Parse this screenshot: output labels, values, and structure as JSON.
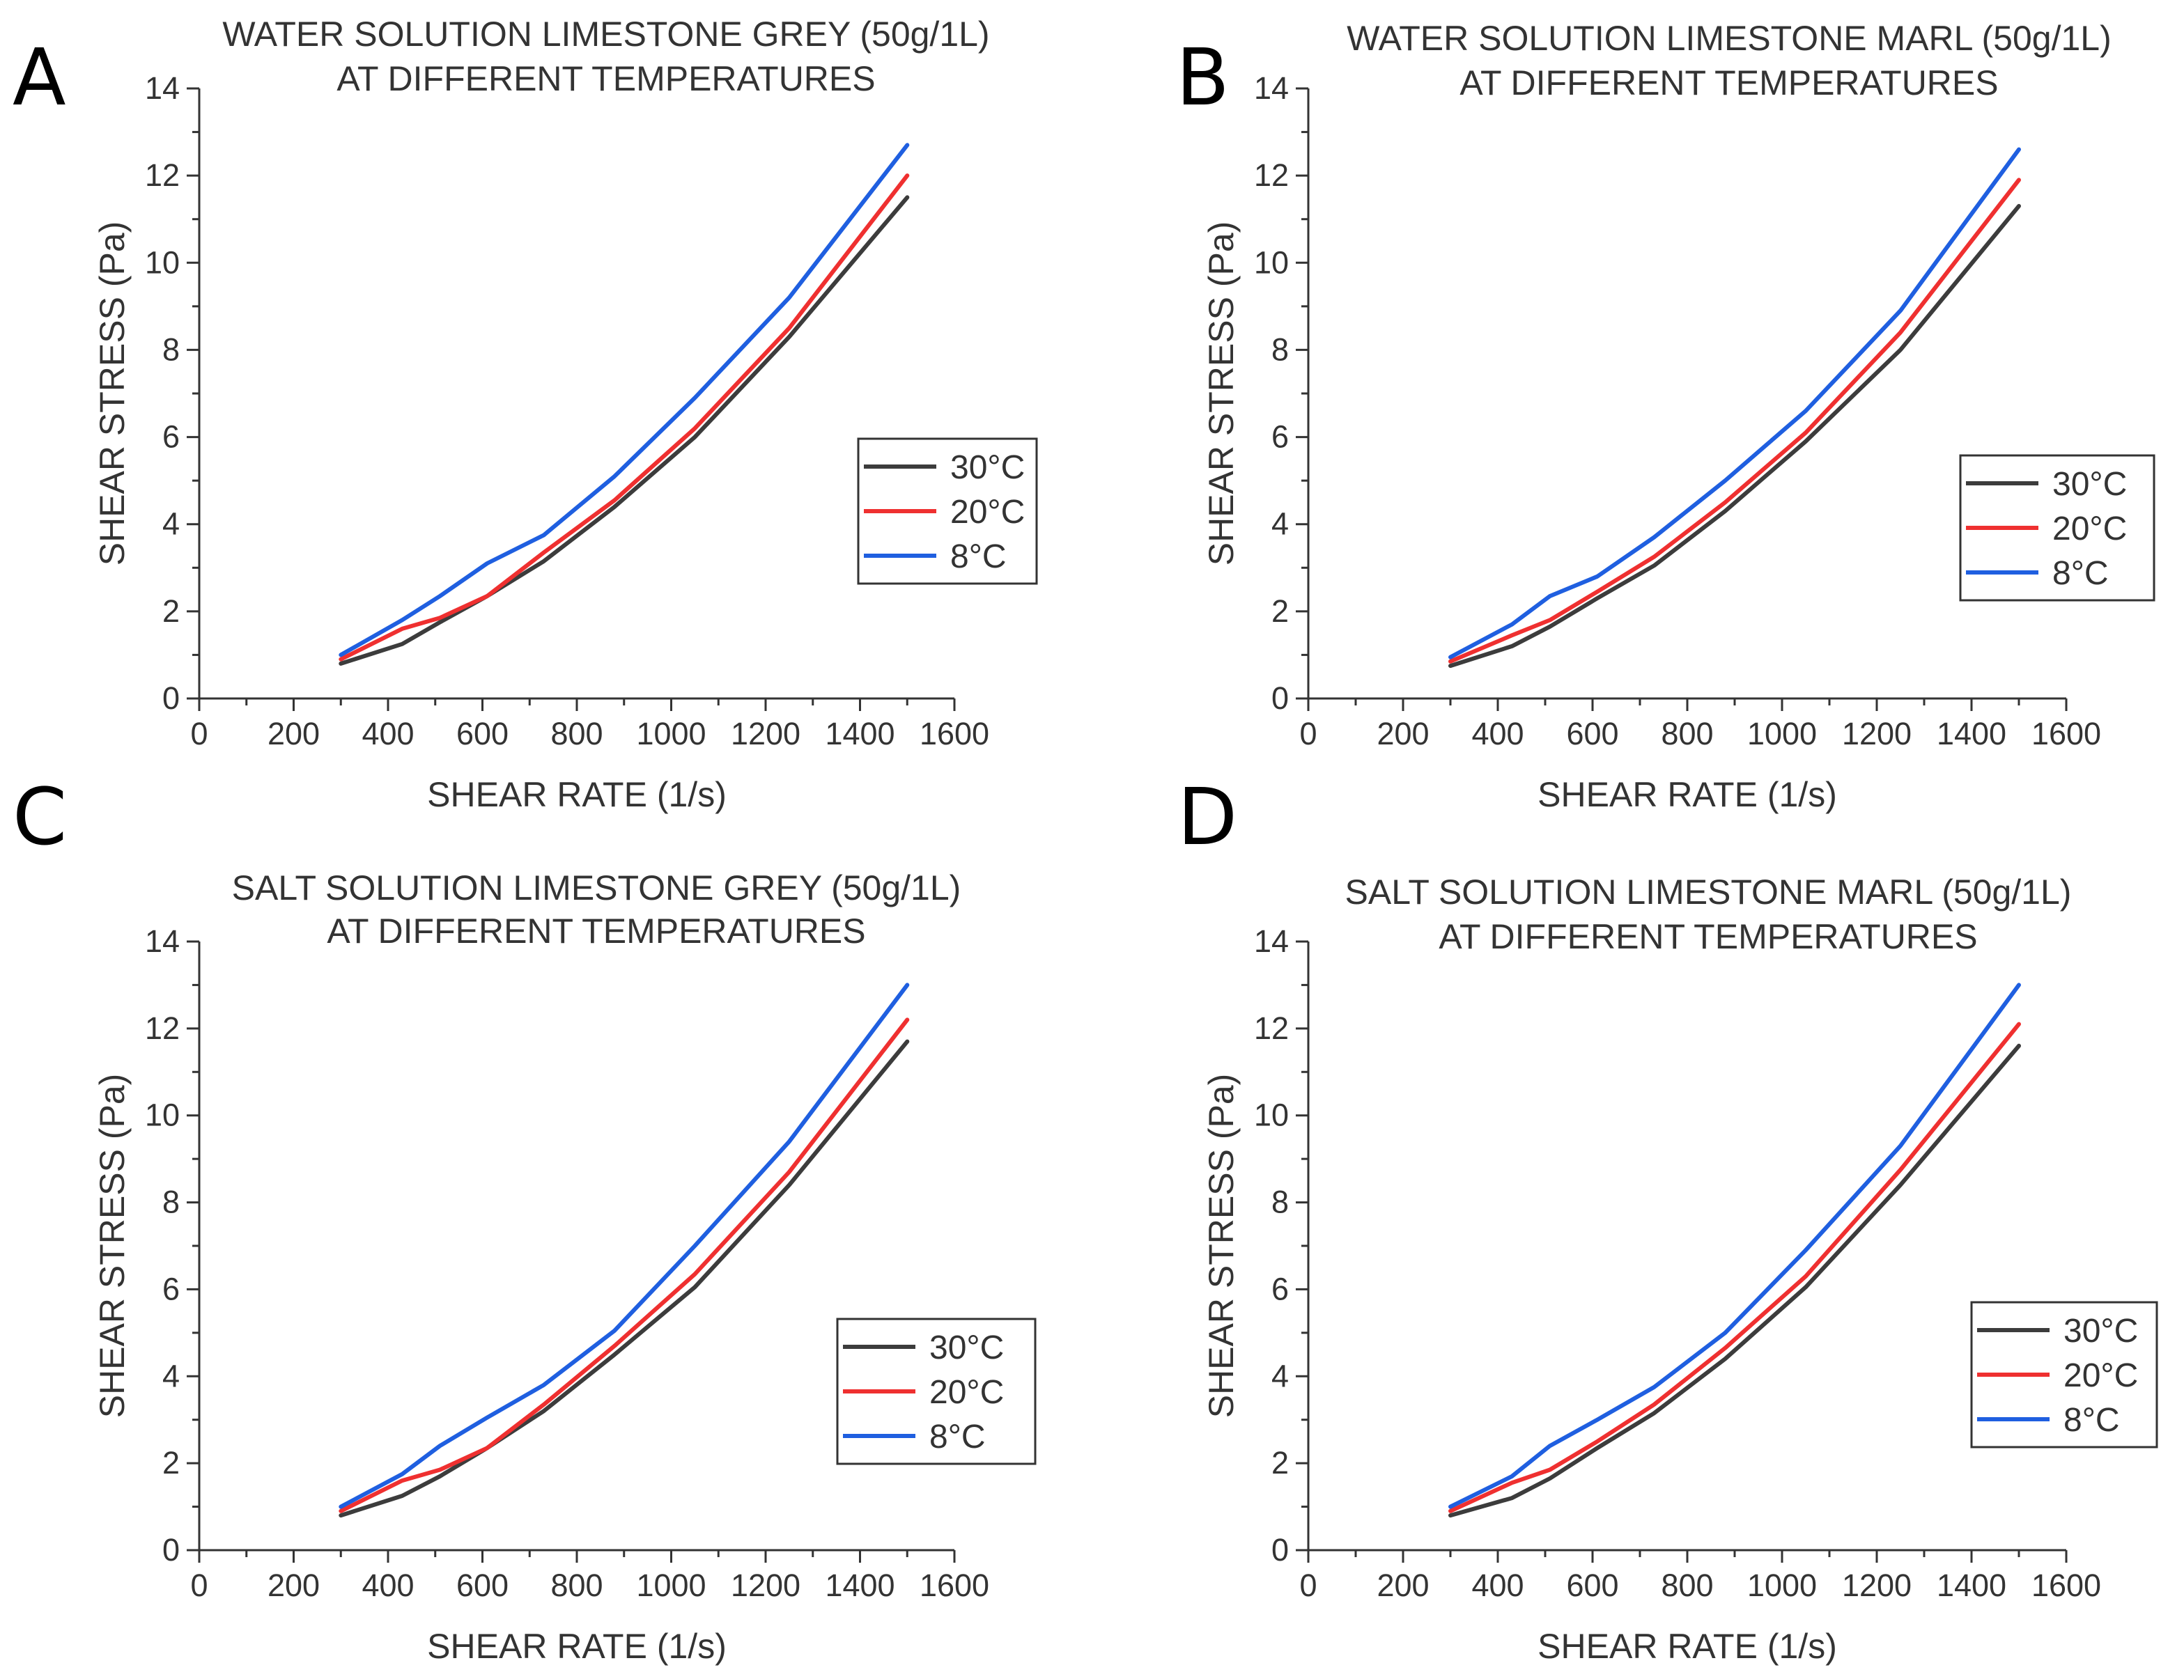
{
  "series_colors": {
    "30°C": "#3c3c3c",
    "20°C": "#ef3030",
    "8°C": "#1f5fe0"
  },
  "chart_data": [
    {
      "type": "line",
      "panel": "A",
      "title": [
        "WATER SOLUTION LIMESTONE GREY (50g/1L)",
        "AT DIFFERENT TEMPERATURES"
      ],
      "xlabel": "SHEAR RATE (1/s)",
      "ylabel": "SHEAR STRESS (Pa)",
      "xlim": [
        0,
        1600
      ],
      "ylim": [
        0,
        14
      ],
      "xticks": [
        0,
        200,
        400,
        600,
        800,
        1000,
        1200,
        1400,
        1600
      ],
      "yticks": [
        0,
        2,
        4,
        6,
        8,
        10,
        12,
        14
      ],
      "legend": [
        "30°C",
        "20°C",
        "8°C"
      ],
      "series": [
        {
          "name": "30°C",
          "x": [
            300,
            430,
            510,
            610,
            730,
            880,
            1050,
            1250,
            1500
          ],
          "y": [
            0.8,
            1.25,
            1.75,
            2.35,
            3.15,
            4.4,
            6.0,
            8.3,
            11.5
          ]
        },
        {
          "name": "20°C",
          "x": [
            300,
            430,
            510,
            610,
            730,
            880,
            1050,
            1250,
            1500
          ],
          "y": [
            0.9,
            1.6,
            1.85,
            2.35,
            3.35,
            4.55,
            6.2,
            8.5,
            12.0
          ]
        },
        {
          "name": "8°C",
          "x": [
            300,
            430,
            510,
            610,
            730,
            880,
            1050,
            1250,
            1500
          ],
          "y": [
            1.0,
            1.8,
            2.35,
            3.1,
            3.75,
            5.1,
            6.9,
            9.2,
            12.7
          ]
        }
      ]
    },
    {
      "type": "line",
      "panel": "B",
      "title": [
        "WATER SOLUTION LIMESTONE MARL (50g/1L)",
        "AT DIFFERENT TEMPERATURES"
      ],
      "xlabel": "SHEAR RATE (1/s)",
      "ylabel": "SHEAR STRESS (Pa)",
      "xlim": [
        0,
        1600
      ],
      "ylim": [
        0,
        14
      ],
      "xticks": [
        0,
        200,
        400,
        600,
        800,
        1000,
        1200,
        1400,
        1600
      ],
      "yticks": [
        0,
        2,
        4,
        6,
        8,
        10,
        12,
        14
      ],
      "legend": [
        "30°C",
        "20°C",
        "8°C"
      ],
      "series": [
        {
          "name": "30°C",
          "x": [
            300,
            430,
            510,
            610,
            730,
            880,
            1050,
            1250,
            1500
          ],
          "y": [
            0.75,
            1.2,
            1.65,
            2.3,
            3.05,
            4.3,
            5.9,
            8.0,
            11.3
          ]
        },
        {
          "name": "20°C",
          "x": [
            300,
            430,
            510,
            610,
            730,
            880,
            1050,
            1250,
            1500
          ],
          "y": [
            0.85,
            1.45,
            1.8,
            2.45,
            3.25,
            4.5,
            6.1,
            8.4,
            11.9
          ]
        },
        {
          "name": "8°C",
          "x": [
            300,
            430,
            510,
            610,
            730,
            880,
            1050,
            1250,
            1500
          ],
          "y": [
            0.95,
            1.7,
            2.35,
            2.8,
            3.7,
            5.0,
            6.6,
            8.9,
            12.6
          ]
        }
      ]
    },
    {
      "type": "line",
      "panel": "C",
      "title": [
        "SALT SOLUTION LIMESTONE GREY (50g/1L)",
        "AT DIFFERENT TEMPERATURES"
      ],
      "xlabel": "SHEAR RATE (1/s)",
      "ylabel": "SHEAR STRESS (Pa)",
      "xlim": [
        0,
        1600
      ],
      "ylim": [
        0,
        14
      ],
      "xticks": [
        0,
        200,
        400,
        600,
        800,
        1000,
        1200,
        1400,
        1600
      ],
      "yticks": [
        0,
        2,
        4,
        6,
        8,
        10,
        12,
        14
      ],
      "legend": [
        "30°C",
        "20°C",
        "8°C"
      ],
      "series": [
        {
          "name": "30°C",
          "x": [
            300,
            430,
            510,
            610,
            730,
            880,
            1050,
            1250,
            1500
          ],
          "y": [
            0.8,
            1.25,
            1.7,
            2.35,
            3.2,
            4.5,
            6.05,
            8.4,
            11.7
          ]
        },
        {
          "name": "20°C",
          "x": [
            300,
            430,
            510,
            610,
            730,
            880,
            1050,
            1250,
            1500
          ],
          "y": [
            0.9,
            1.6,
            1.85,
            2.35,
            3.35,
            4.7,
            6.35,
            8.7,
            12.2
          ]
        },
        {
          "name": "8°C",
          "x": [
            300,
            430,
            510,
            610,
            730,
            880,
            1050,
            1250,
            1500
          ],
          "y": [
            1.0,
            1.75,
            2.4,
            3.05,
            3.8,
            5.05,
            7.0,
            9.4,
            13.0
          ]
        }
      ]
    },
    {
      "type": "line",
      "panel": "D",
      "title": [
        "SALT SOLUTION LIMESTONE MARL (50g/1L)",
        "AT DIFFERENT TEMPERATURES"
      ],
      "xlabel": "SHEAR RATE (1/s)",
      "ylabel": "SHEAR STRESS (Pa)",
      "xlim": [
        0,
        1600
      ],
      "ylim": [
        0,
        14
      ],
      "xticks": [
        0,
        200,
        400,
        600,
        800,
        1000,
        1200,
        1400,
        1600
      ],
      "yticks": [
        0,
        2,
        4,
        6,
        8,
        10,
        12,
        14
      ],
      "legend": [
        "30°C",
        "20°C",
        "8°C"
      ],
      "series": [
        {
          "name": "30°C",
          "x": [
            300,
            430,
            510,
            610,
            730,
            880,
            1050,
            1250,
            1500
          ],
          "y": [
            0.8,
            1.2,
            1.65,
            2.35,
            3.15,
            4.4,
            6.05,
            8.4,
            11.6
          ]
        },
        {
          "name": "20°C",
          "x": [
            300,
            430,
            510,
            610,
            730,
            880,
            1050,
            1250,
            1500
          ],
          "y": [
            0.9,
            1.55,
            1.85,
            2.5,
            3.35,
            4.65,
            6.3,
            8.75,
            12.1
          ]
        },
        {
          "name": "8°C",
          "x": [
            300,
            430,
            510,
            610,
            730,
            880,
            1050,
            1250,
            1500
          ],
          "y": [
            1.0,
            1.7,
            2.4,
            3.0,
            3.75,
            5.0,
            6.9,
            9.3,
            13.0
          ]
        }
      ]
    }
  ]
}
